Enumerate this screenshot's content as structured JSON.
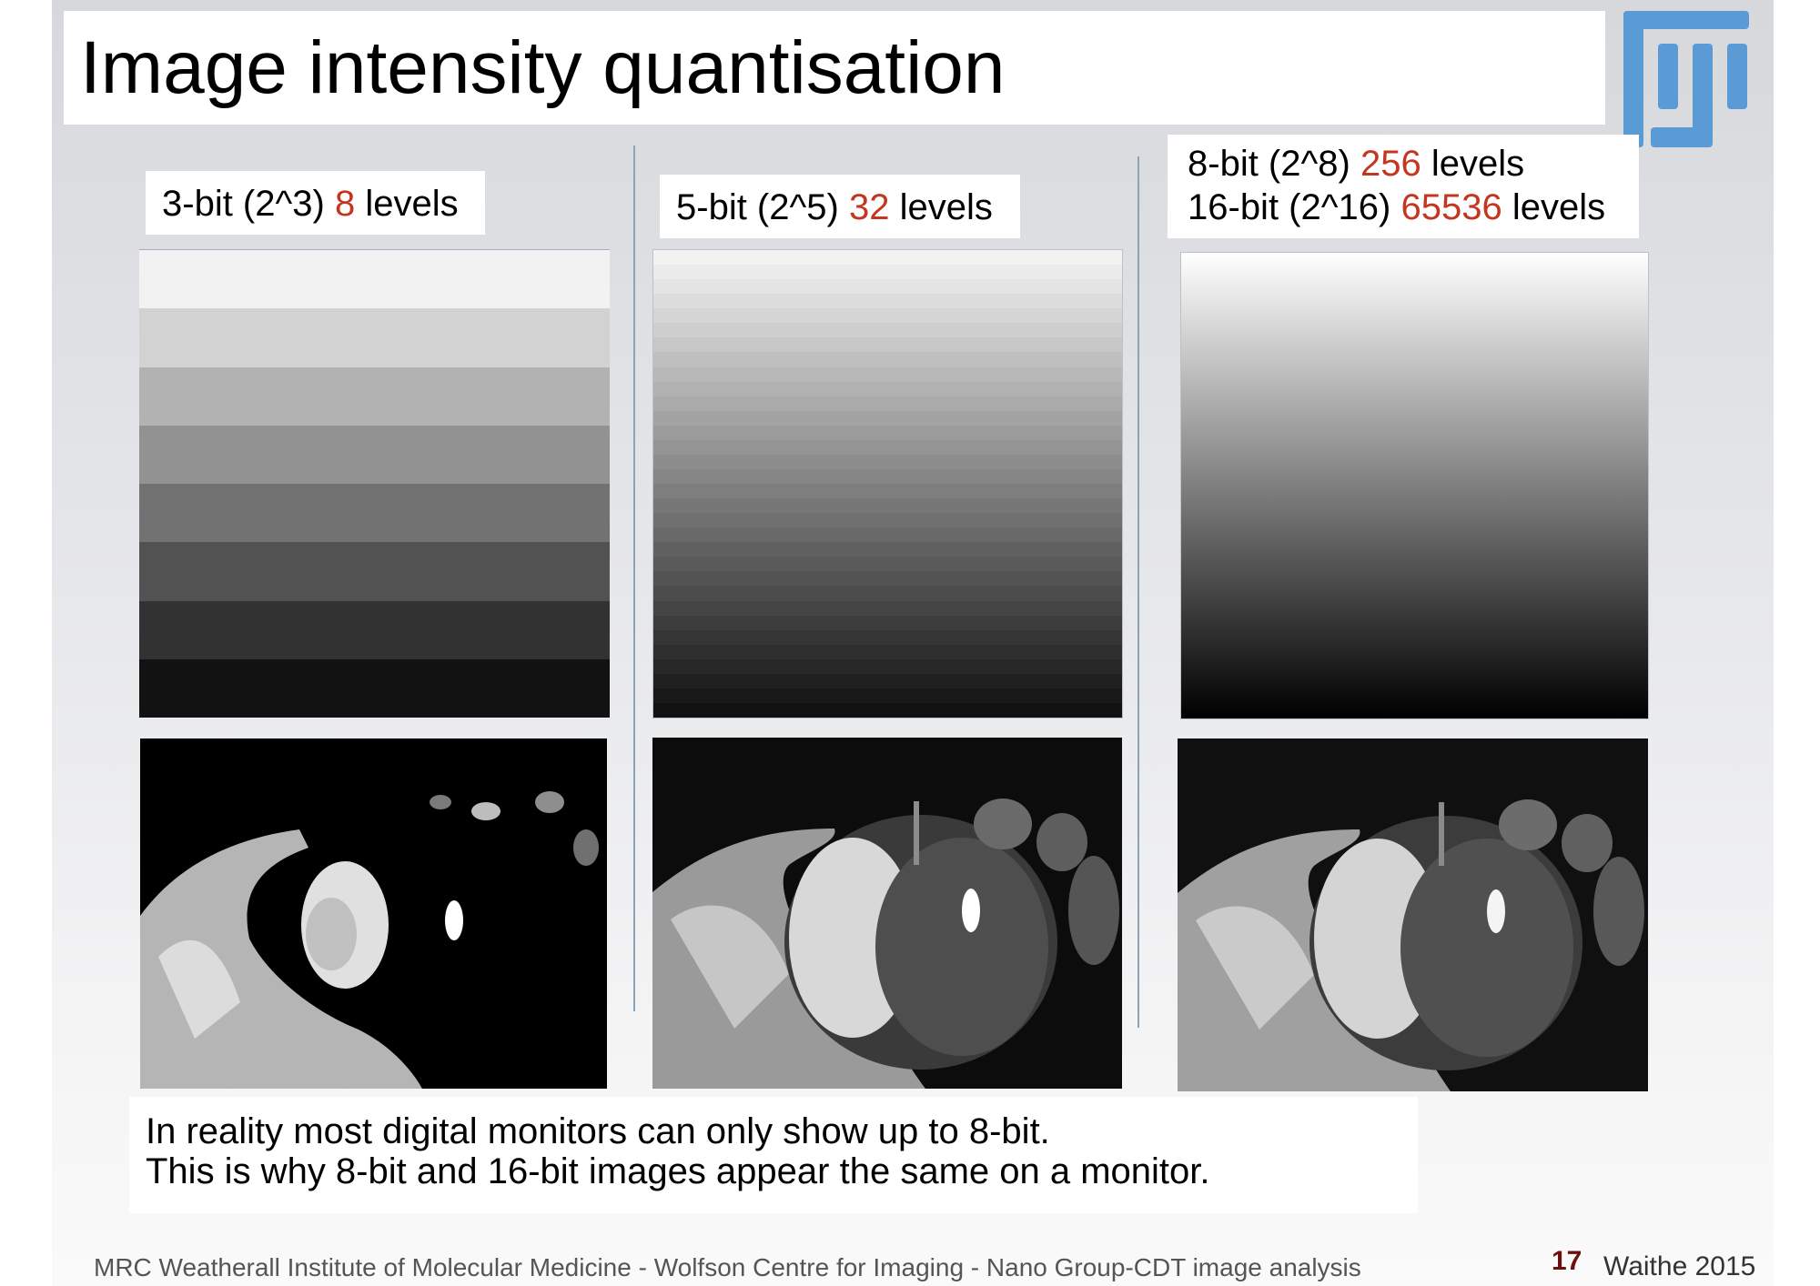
{
  "title": "Image intensity quantisation",
  "logo_icon": "fiji-logo",
  "panels": [
    {
      "bits": "3-bit (2^3)",
      "levels": "8",
      "levels_suffix": "levels",
      "level_count": 8
    },
    {
      "bits": "5-bit (2^5)",
      "levels": "32",
      "levels_suffix": "levels",
      "level_count": 32
    },
    {
      "line1_bits": "8-bit (2^8)",
      "line1_levels": "256",
      "line1_suffix": "levels",
      "line2_bits": "16-bit (2^16)",
      "line2_levels": "65536",
      "line2_suffix": "levels",
      "level_count": 256
    }
  ],
  "note": {
    "line1": "In reality most digital monitors can only show up to 8-bit.",
    "line2": "This is why 8-bit and 16-bit images appear the same on a monitor."
  },
  "footer": {
    "institution": "MRC Weatherall Institute of Molecular Medicine - Wolfson Centre for Imaging - Nano Group-CDT image analysis",
    "page_number": "17",
    "author_year": "Waithe 2015"
  },
  "colors": {
    "accent_red": "#c3361f",
    "logo_blue": "#5b9bd5",
    "page_number": "#6b0f0f"
  }
}
